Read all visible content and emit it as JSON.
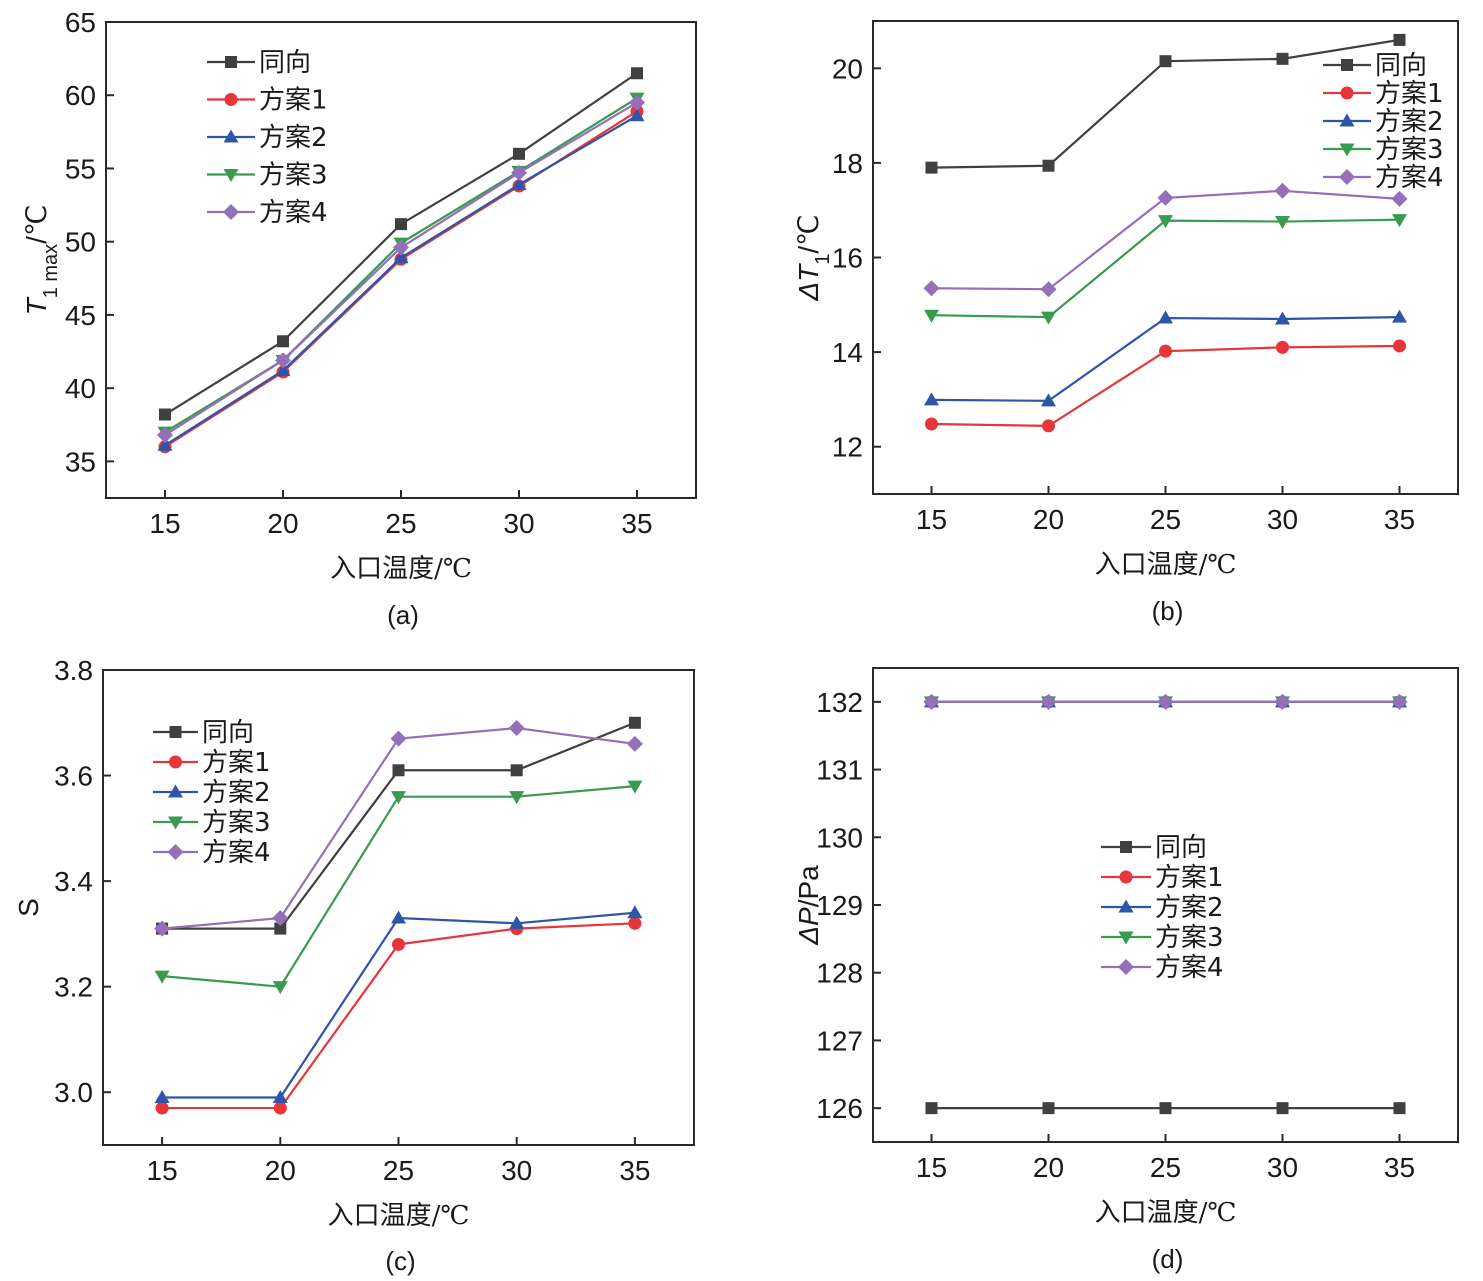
{
  "chart_data": [
    {
      "type": "line",
      "panel": "(a)",
      "title": "",
      "xlabel": "入口温度/℃",
      "ylabel": {
        "main": "T",
        "sub": "1 max",
        "unit": "/℃"
      },
      "x": [
        15,
        20,
        25,
        30,
        35
      ],
      "xticks": [
        "15",
        "20",
        "25",
        "30",
        "35"
      ],
      "xlim": [
        12.5,
        37.5
      ],
      "ylim": [
        32.5,
        65
      ],
      "yticks": [
        35,
        40,
        45,
        50,
        55,
        60,
        65
      ],
      "grid": false,
      "legend_position": "top-left",
      "series": [
        {
          "name": "同向",
          "color": "#404040",
          "marker": "square",
          "values": [
            38.2,
            43.2,
            51.2,
            56.0,
            61.5
          ]
        },
        {
          "name": "方案1",
          "color": "#e8353a",
          "marker": "circle",
          "values": [
            36.0,
            41.1,
            48.8,
            53.8,
            58.9
          ]
        },
        {
          "name": "方案2",
          "color": "#2f55a8",
          "marker": "triangle-up",
          "values": [
            36.1,
            41.2,
            48.9,
            53.9,
            58.6
          ]
        },
        {
          "name": "方案3",
          "color": "#3a9a50",
          "marker": "triangle-down",
          "values": [
            37.0,
            41.9,
            49.9,
            54.8,
            59.8
          ]
        },
        {
          "name": "方案4",
          "color": "#9370b8",
          "marker": "diamond",
          "values": [
            36.8,
            41.9,
            49.6,
            54.7,
            59.5
          ]
        }
      ]
    },
    {
      "type": "line",
      "panel": "(b)",
      "title": "",
      "xlabel": "入口温度/℃",
      "ylabel": {
        "main": "ΔT",
        "sub": "1",
        "unit": "/℃"
      },
      "x": [
        15,
        20,
        25,
        30,
        35
      ],
      "xticks": [
        "15",
        "20",
        "25",
        "30",
        "35"
      ],
      "xlim": [
        12.5,
        37.5
      ],
      "ylim": [
        11,
        21
      ],
      "yticks": [
        12,
        14,
        16,
        18,
        20
      ],
      "grid": false,
      "legend_position": "top-right",
      "series": [
        {
          "name": "同向",
          "color": "#404040",
          "marker": "square",
          "values": [
            17.9,
            17.94,
            20.15,
            20.2,
            20.6
          ]
        },
        {
          "name": "方案1",
          "color": "#e8353a",
          "marker": "circle",
          "values": [
            12.48,
            12.44,
            14.02,
            14.1,
            14.13
          ]
        },
        {
          "name": "方案2",
          "color": "#2f55a8",
          "marker": "triangle-up",
          "values": [
            12.99,
            12.97,
            14.72,
            14.7,
            14.74
          ]
        },
        {
          "name": "方案3",
          "color": "#3a9a50",
          "marker": "triangle-down",
          "values": [
            14.78,
            14.74,
            16.78,
            16.76,
            16.8
          ]
        },
        {
          "name": "方案4",
          "color": "#9370b8",
          "marker": "diamond",
          "values": [
            15.35,
            15.33,
            17.26,
            17.41,
            17.24
          ]
        }
      ]
    },
    {
      "type": "line",
      "panel": "(c)",
      "title": "",
      "xlabel": "入口温度/℃",
      "ylabel": {
        "main": "S",
        "sub": "",
        "unit": ""
      },
      "x": [
        15,
        20,
        25,
        30,
        35
      ],
      "xticks": [
        "15",
        "20",
        "25",
        "30",
        "35"
      ],
      "xlim": [
        12.5,
        37.5
      ],
      "ylim": [
        2.9,
        3.8
      ],
      "yticks": [
        3.0,
        3.2,
        3.4,
        3.6,
        3.8
      ],
      "ytick_labels": [
        "3.0",
        "3.2",
        "3.4",
        "3.6",
        "3.8"
      ],
      "grid": false,
      "legend_position": "top-left",
      "series": [
        {
          "name": "同向",
          "color": "#404040",
          "marker": "square",
          "values": [
            3.31,
            3.31,
            3.61,
            3.61,
            3.7
          ]
        },
        {
          "name": "方案1",
          "color": "#e8353a",
          "marker": "circle",
          "values": [
            2.97,
            2.97,
            3.28,
            3.31,
            3.32
          ]
        },
        {
          "name": "方案2",
          "color": "#2f55a8",
          "marker": "triangle-up",
          "values": [
            2.99,
            2.99,
            3.33,
            3.32,
            3.34
          ]
        },
        {
          "name": "方案3",
          "color": "#3a9a50",
          "marker": "triangle-down",
          "values": [
            3.22,
            3.2,
            3.56,
            3.56,
            3.58
          ]
        },
        {
          "name": "方案4",
          "color": "#9370b8",
          "marker": "diamond",
          "values": [
            3.31,
            3.33,
            3.67,
            3.69,
            3.66
          ]
        }
      ]
    },
    {
      "type": "line",
      "panel": "(d)",
      "title": "",
      "xlabel": "入口温度/℃",
      "ylabel": {
        "main": "ΔP",
        "sub": "",
        "unit": "/Pa"
      },
      "x": [
        15,
        20,
        25,
        30,
        35
      ],
      "xticks": [
        "15",
        "20",
        "25",
        "30",
        "35"
      ],
      "xlim": [
        12.5,
        37.5
      ],
      "ylim": [
        125.5,
        132.5
      ],
      "yticks": [
        126,
        127,
        128,
        129,
        130,
        131,
        132
      ],
      "grid": false,
      "legend_position": "center",
      "series": [
        {
          "name": "同向",
          "color": "#404040",
          "marker": "square",
          "values": [
            126,
            126,
            126,
            126,
            126
          ]
        },
        {
          "name": "方案1",
          "color": "#e8353a",
          "marker": "circle",
          "values": [
            132,
            132,
            132,
            132,
            132
          ]
        },
        {
          "name": "方案2",
          "color": "#2f55a8",
          "marker": "triangle-up",
          "values": [
            132,
            132,
            132,
            132,
            132
          ]
        },
        {
          "name": "方案3",
          "color": "#3a9a50",
          "marker": "triangle-down",
          "values": [
            132,
            132,
            132,
            132,
            132
          ]
        },
        {
          "name": "方案4",
          "color": "#9370b8",
          "marker": "diamond",
          "values": [
            132,
            132,
            132,
            132,
            132
          ]
        }
      ]
    }
  ]
}
